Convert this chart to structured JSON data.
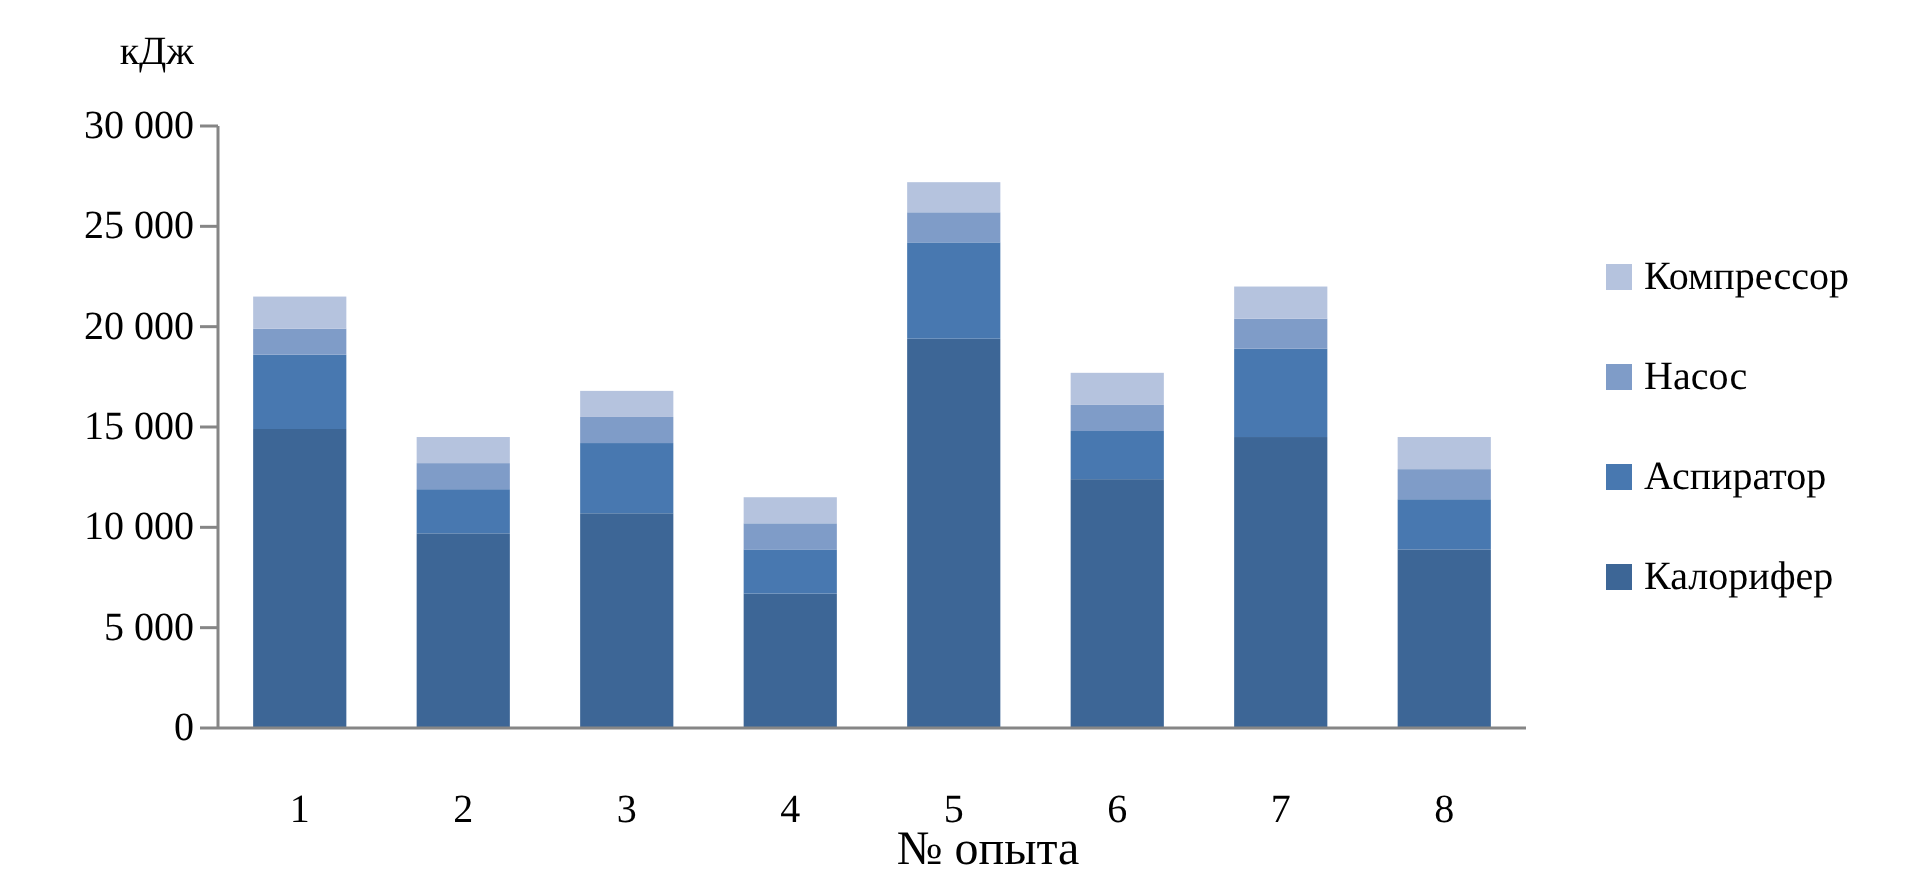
{
  "chart_data": {
    "type": "bar",
    "stacked": true,
    "xlabel": "№ опыта",
    "ylabel": "кДж",
    "categories": [
      "1",
      "2",
      "3",
      "4",
      "5",
      "6",
      "7",
      "8"
    ],
    "series": [
      {
        "name": "Калорифер",
        "color": "#3d6696",
        "values": [
          14900,
          9700,
          10700,
          6700,
          19400,
          12400,
          14500,
          8900
        ]
      },
      {
        "name": "Аспиратор",
        "color": "#4878b0",
        "values": [
          3700,
          2200,
          3500,
          2200,
          4800,
          2400,
          4400,
          2500
        ]
      },
      {
        "name": "Насос",
        "color": "#7f9cc8",
        "values": [
          1300,
          1300,
          1300,
          1300,
          1500,
          1300,
          1500,
          1500
        ]
      },
      {
        "name": "Компрессор",
        "color": "#b5c3de",
        "values": [
          1600,
          1300,
          1300,
          1300,
          1500,
          1600,
          1600,
          1600
        ]
      }
    ],
    "ylim": [
      0,
      30000
    ],
    "yticks": [
      0,
      {
        "value": 5000,
        "label": "5 000"
      },
      {
        "value": 10000,
        "label": "10 000"
      },
      {
        "value": 15000,
        "label": "15 000"
      },
      {
        "value": 20000,
        "label": "20 000"
      },
      {
        "value": 25000,
        "label": "25 000"
      },
      {
        "value": 30000,
        "label": "30 000"
      }
    ],
    "grid": false,
    "legend": "right"
  }
}
